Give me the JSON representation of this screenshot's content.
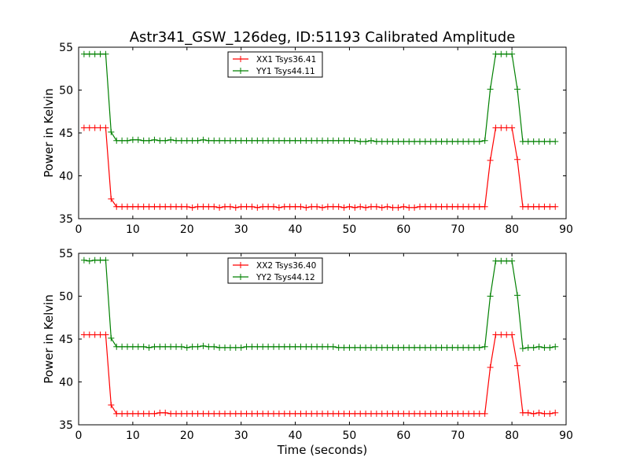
{
  "chart_data": {
    "title": "Astr341_GSW_126deg, ID:51193 Calibrated Amplitude",
    "type": "line",
    "xlabel": "Time (seconds)",
    "colors": {
      "xx": "#ff0000",
      "yy": "#008000"
    },
    "subplots": [
      {
        "ylabel": "Power in Kelvin",
        "xlim": [
          0,
          90
        ],
        "ylim": [
          35,
          55
        ],
        "xticks": [
          0,
          10,
          20,
          30,
          40,
          50,
          60,
          70,
          80,
          90
        ],
        "yticks": [
          35,
          40,
          45,
          50,
          55
        ],
        "legend_position": "top-center",
        "series": [
          {
            "name": "XX1 Tsys36.41",
            "color": "#ff0000",
            "x": [
              1,
              2,
              3,
              4,
              5,
              6,
              7,
              8,
              9,
              10,
              11,
              12,
              13,
              14,
              15,
              16,
              17,
              18,
              19,
              20,
              21,
              22,
              23,
              24,
              25,
              26,
              27,
              28,
              29,
              30,
              31,
              32,
              33,
              34,
              35,
              36,
              37,
              38,
              39,
              40,
              41,
              42,
              43,
              44,
              45,
              46,
              47,
              48,
              49,
              50,
              51,
              52,
              53,
              54,
              55,
              56,
              57,
              58,
              59,
              60,
              61,
              62,
              63,
              64,
              65,
              66,
              67,
              68,
              69,
              70,
              71,
              72,
              73,
              74,
              75,
              76,
              77,
              78,
              79,
              80,
              81,
              82,
              83,
              84,
              85,
              86,
              87,
              88
            ],
            "y": [
              45.6,
              45.6,
              45.6,
              45.6,
              45.6,
              37.3,
              36.4,
              36.4,
              36.4,
              36.4,
              36.4,
              36.4,
              36.4,
              36.4,
              36.4,
              36.4,
              36.4,
              36.4,
              36.4,
              36.4,
              36.3,
              36.4,
              36.4,
              36.4,
              36.4,
              36.3,
              36.4,
              36.4,
              36.3,
              36.4,
              36.4,
              36.4,
              36.3,
              36.4,
              36.4,
              36.4,
              36.3,
              36.4,
              36.4,
              36.4,
              36.4,
              36.3,
              36.4,
              36.4,
              36.3,
              36.4,
              36.4,
              36.4,
              36.3,
              36.4,
              36.3,
              36.4,
              36.3,
              36.4,
              36.4,
              36.3,
              36.4,
              36.3,
              36.3,
              36.4,
              36.3,
              36.3,
              36.4,
              36.4,
              36.4,
              36.4,
              36.4,
              36.4,
              36.4,
              36.4,
              36.4,
              36.4,
              36.4,
              36.4,
              36.4,
              41.8,
              45.6,
              45.6,
              45.6,
              45.6,
              41.9,
              36.4,
              36.4,
              36.4,
              36.4,
              36.4,
              36.4,
              36.4
            ]
          },
          {
            "name": "YY1 Tsys44.11",
            "color": "#008000",
            "x": [
              1,
              2,
              3,
              4,
              5,
              6,
              7,
              8,
              9,
              10,
              11,
              12,
              13,
              14,
              15,
              16,
              17,
              18,
              19,
              20,
              21,
              22,
              23,
              24,
              25,
              26,
              27,
              28,
              29,
              30,
              31,
              32,
              33,
              34,
              35,
              36,
              37,
              38,
              39,
              40,
              41,
              42,
              43,
              44,
              45,
              46,
              47,
              48,
              49,
              50,
              51,
              52,
              53,
              54,
              55,
              56,
              57,
              58,
              59,
              60,
              61,
              62,
              63,
              64,
              65,
              66,
              67,
              68,
              69,
              70,
              71,
              72,
              73,
              74,
              75,
              76,
              77,
              78,
              79,
              80,
              81,
              82,
              83,
              84,
              85,
              86,
              87,
              88
            ],
            "y": [
              54.2,
              54.2,
              54.2,
              54.2,
              54.2,
              45.1,
              44.1,
              44.1,
              44.1,
              44.2,
              44.2,
              44.1,
              44.1,
              44.2,
              44.1,
              44.1,
              44.2,
              44.1,
              44.1,
              44.1,
              44.1,
              44.1,
              44.2,
              44.1,
              44.1,
              44.1,
              44.1,
              44.1,
              44.1,
              44.1,
              44.1,
              44.1,
              44.1,
              44.1,
              44.1,
              44.1,
              44.1,
              44.1,
              44.1,
              44.1,
              44.1,
              44.1,
              44.1,
              44.1,
              44.1,
              44.1,
              44.1,
              44.1,
              44.1,
              44.1,
              44.1,
              44.0,
              44.0,
              44.1,
              44.0,
              44.0,
              44.0,
              44.0,
              44.0,
              44.0,
              44.0,
              44.0,
              44.0,
              44.0,
              44.0,
              44.0,
              44.0,
              44.0,
              44.0,
              44.0,
              44.0,
              44.0,
              44.0,
              44.0,
              44.1,
              50.1,
              54.2,
              54.2,
              54.2,
              54.2,
              50.1,
              44.0,
              44.0,
              44.0,
              44.0,
              44.0,
              44.0,
              44.0
            ]
          }
        ]
      },
      {
        "ylabel": "Power in Kelvin",
        "xlabel": "Time (seconds)",
        "xlim": [
          0,
          90
        ],
        "ylim": [
          35,
          55
        ],
        "xticks": [
          0,
          10,
          20,
          30,
          40,
          50,
          60,
          70,
          80,
          90
        ],
        "yticks": [
          35,
          40,
          45,
          50,
          55
        ],
        "legend_position": "top-center",
        "series": [
          {
            "name": "XX2 Tsys36.40",
            "color": "#ff0000",
            "x": [
              1,
              2,
              3,
              4,
              5,
              6,
              7,
              8,
              9,
              10,
              11,
              12,
              13,
              14,
              15,
              16,
              17,
              18,
              19,
              20,
              21,
              22,
              23,
              24,
              25,
              26,
              27,
              28,
              29,
              30,
              31,
              32,
              33,
              34,
              35,
              36,
              37,
              38,
              39,
              40,
              41,
              42,
              43,
              44,
              45,
              46,
              47,
              48,
              49,
              50,
              51,
              52,
              53,
              54,
              55,
              56,
              57,
              58,
              59,
              60,
              61,
              62,
              63,
              64,
              65,
              66,
              67,
              68,
              69,
              70,
              71,
              72,
              73,
              74,
              75,
              76,
              77,
              78,
              79,
              80,
              81,
              82,
              83,
              84,
              85,
              86,
              87,
              88
            ],
            "y": [
              45.5,
              45.5,
              45.5,
              45.5,
              45.5,
              37.3,
              36.3,
              36.3,
              36.3,
              36.3,
              36.3,
              36.3,
              36.3,
              36.3,
              36.4,
              36.4,
              36.3,
              36.3,
              36.3,
              36.3,
              36.3,
              36.3,
              36.3,
              36.3,
              36.3,
              36.3,
              36.3,
              36.3,
              36.3,
              36.3,
              36.3,
              36.3,
              36.3,
              36.3,
              36.3,
              36.3,
              36.3,
              36.3,
              36.3,
              36.3,
              36.3,
              36.3,
              36.3,
              36.3,
              36.3,
              36.3,
              36.3,
              36.3,
              36.3,
              36.3,
              36.3,
              36.3,
              36.3,
              36.3,
              36.3,
              36.3,
              36.3,
              36.3,
              36.3,
              36.3,
              36.3,
              36.3,
              36.3,
              36.3,
              36.3,
              36.3,
              36.3,
              36.3,
              36.3,
              36.3,
              36.3,
              36.3,
              36.3,
              36.3,
              36.3,
              41.7,
              45.5,
              45.5,
              45.5,
              45.5,
              41.9,
              36.4,
              36.4,
              36.3,
              36.4,
              36.3,
              36.3,
              36.4
            ]
          },
          {
            "name": "YY2 Tsys44.12",
            "color": "#008000",
            "x": [
              1,
              2,
              3,
              4,
              5,
              6,
              7,
              8,
              9,
              10,
              11,
              12,
              13,
              14,
              15,
              16,
              17,
              18,
              19,
              20,
              21,
              22,
              23,
              24,
              25,
              26,
              27,
              28,
              29,
              30,
              31,
              32,
              33,
              34,
              35,
              36,
              37,
              38,
              39,
              40,
              41,
              42,
              43,
              44,
              45,
              46,
              47,
              48,
              49,
              50,
              51,
              52,
              53,
              54,
              55,
              56,
              57,
              58,
              59,
              60,
              61,
              62,
              63,
              64,
              65,
              66,
              67,
              68,
              69,
              70,
              71,
              72,
              73,
              74,
              75,
              76,
              77,
              78,
              79,
              80,
              81,
              82,
              83,
              84,
              85,
              86,
              87,
              88
            ],
            "y": [
              54.2,
              54.1,
              54.2,
              54.2,
              54.2,
              45.1,
              44.1,
              44.1,
              44.1,
              44.1,
              44.1,
              44.1,
              44.0,
              44.1,
              44.1,
              44.1,
              44.1,
              44.1,
              44.1,
              44.0,
              44.1,
              44.1,
              44.2,
              44.1,
              44.1,
              44.0,
              44.0,
              44.0,
              44.0,
              44.0,
              44.1,
              44.1,
              44.1,
              44.1,
              44.1,
              44.1,
              44.1,
              44.1,
              44.1,
              44.1,
              44.1,
              44.1,
              44.1,
              44.1,
              44.1,
              44.1,
              44.1,
              44.0,
              44.0,
              44.0,
              44.0,
              44.0,
              44.0,
              44.0,
              44.0,
              44.0,
              44.0,
              44.0,
              44.0,
              44.0,
              44.0,
              44.0,
              44.0,
              44.0,
              44.0,
              44.0,
              44.0,
              44.0,
              44.0,
              44.0,
              44.0,
              44.0,
              44.0,
              44.0,
              44.1,
              50.0,
              54.1,
              54.1,
              54.1,
              54.1,
              50.1,
              43.9,
              44.0,
              44.0,
              44.1,
              44.0,
              44.0,
              44.1
            ]
          }
        ]
      }
    ]
  }
}
